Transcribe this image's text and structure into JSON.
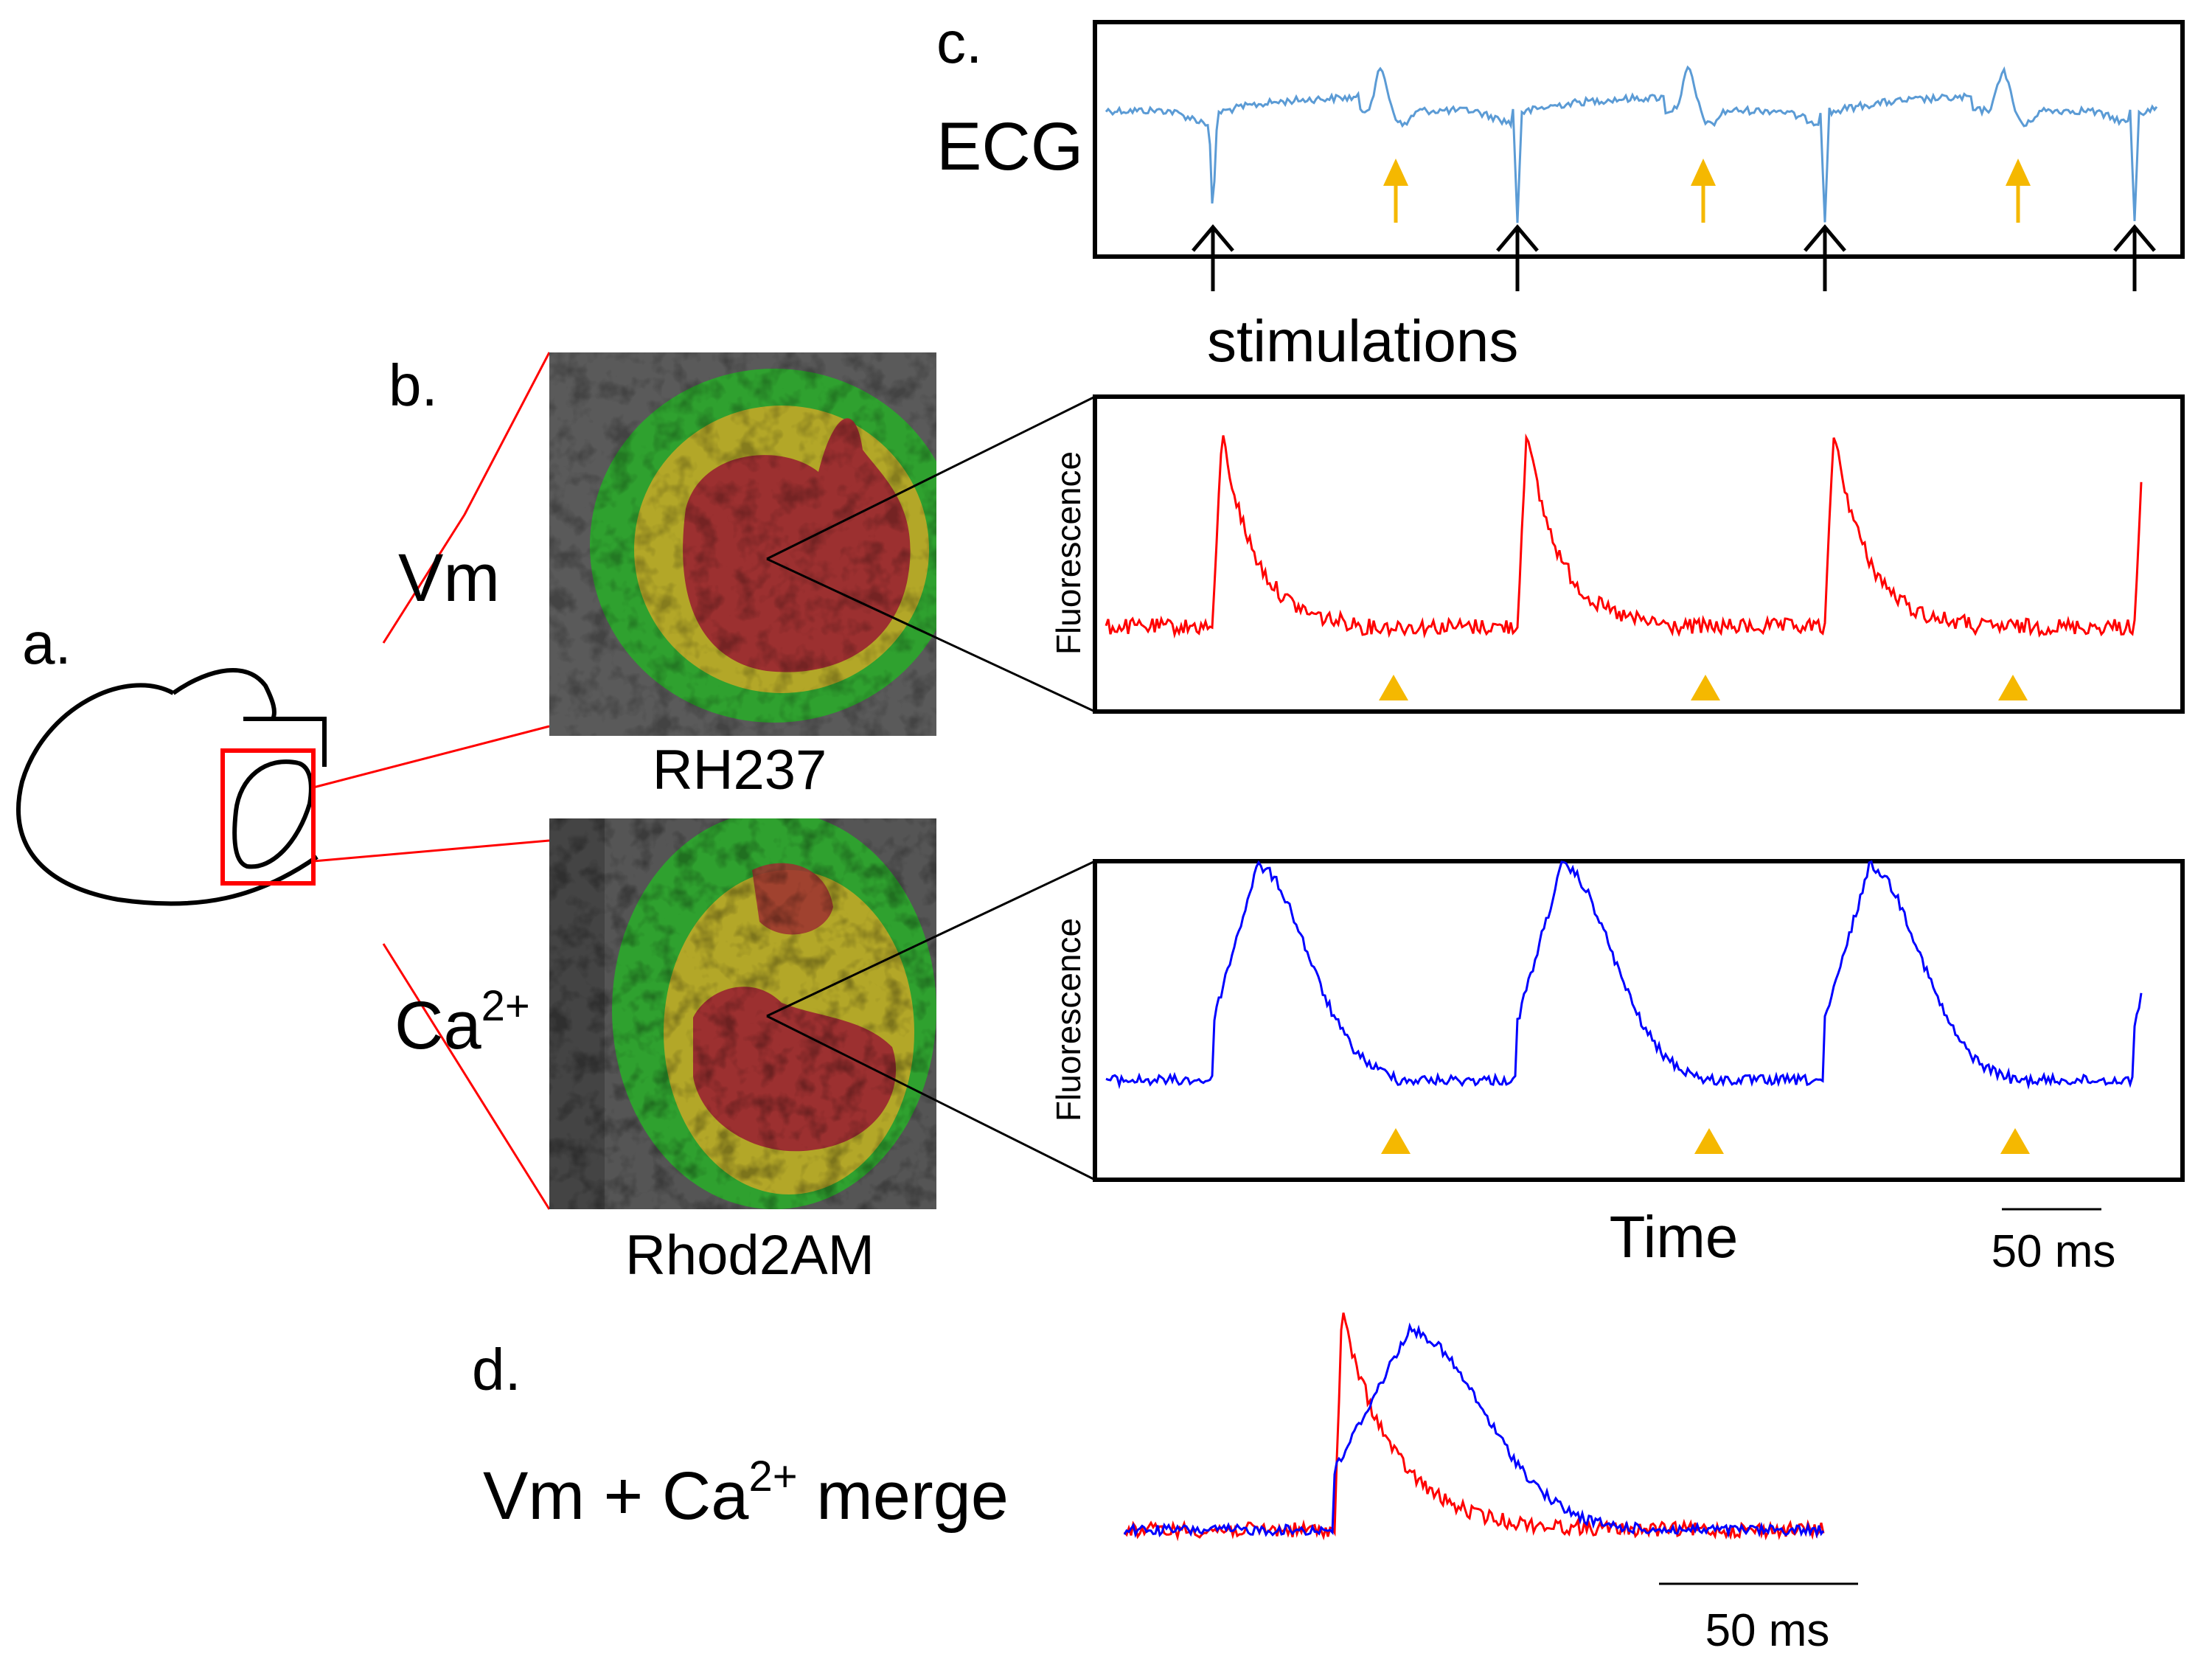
{
  "labels": {
    "a": "a.",
    "b": "b.",
    "c": "c.",
    "d": "d.",
    "vm": "Vm",
    "ca_base": "Ca",
    "ca_sup": "2+",
    "rh237": "RH237",
    "rhod2am": "Rhod2AM",
    "ecg": "ECG",
    "stimulations": "stimulations",
    "fluor_top": "Fluorescence",
    "fluor_bottom": "Fluorescence",
    "time": "Time",
    "scale_main": "50 ms",
    "merge_prefix": "Vm + Ca",
    "merge_sup": "2+",
    "merge_suffix": " merge",
    "scale_merge": "50 ms"
  },
  "colors": {
    "ecg_trace": "#5b9bd5",
    "vm_trace": "#ff0000",
    "ca_trace": "#0000ff",
    "arrow_yellow": "#f5b800",
    "box_red": "#ff0000",
    "outline": "#000000",
    "map_background": "#5a5a5a",
    "map_green": "#2fa12f",
    "map_yellow": "#b3a728",
    "map_red": "#9c3030"
  },
  "icons": {
    "heart": "heart-outline-icon",
    "stim_arrow": "stimulation-arrow-icon",
    "extra_beat": "yellow-arrow-icon",
    "marker": "yellow-triangle-icon"
  }
}
